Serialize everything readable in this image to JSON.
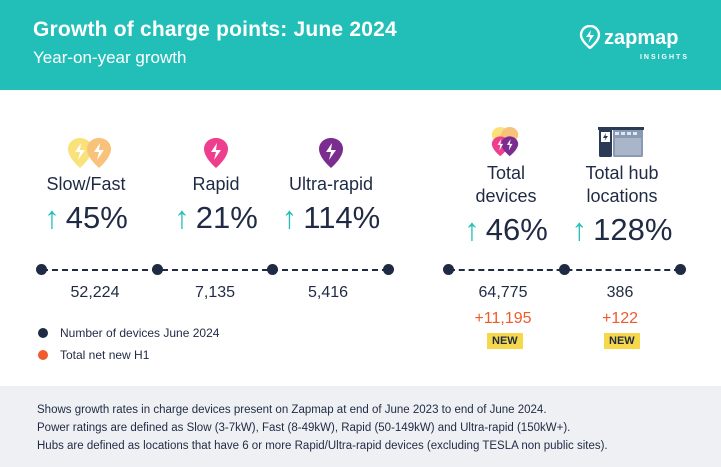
{
  "header": {
    "title": "Growth of charge points: June 2024",
    "subtitle": "Year-on-year growth",
    "brand_name": "zapmap",
    "brand_tag": "INSIGHTS"
  },
  "stats": {
    "slow_fast": {
      "label": "Slow/Fast",
      "growth": "45%",
      "icon": "bolt-pair-icon",
      "count": "52,224"
    },
    "rapid": {
      "label": "Rapid",
      "growth": "21%",
      "icon": "bolt-pink-icon",
      "count": "7,135"
    },
    "ultra_rapid": {
      "label": "Ultra-rapid",
      "growth": "114%",
      "icon": "bolt-purple-icon",
      "count": "5,416"
    },
    "total_devices": {
      "label_line1": "Total",
      "label_line2": "devices",
      "growth": "46%",
      "icon": "bolt-stack-icon",
      "count": "64,775",
      "net_new": "+11,195",
      "badge": "NEW"
    },
    "total_hubs": {
      "label_line1": "Total hub",
      "label_line2": "locations",
      "growth": "128%",
      "icon": "charging-hub-icon",
      "count": "386",
      "net_new": "+122",
      "badge": "NEW"
    }
  },
  "legend": {
    "devices": "Number of devices June 2024",
    "net_new": "Total net new H1"
  },
  "colors": {
    "teal": "#22bfb9",
    "navy": "#1f2a44",
    "orange": "#f15a2b",
    "yellow": "#f7d84b",
    "pink": "#ee3f8f",
    "purple": "#7a2d8f"
  },
  "footer": {
    "line1": "Shows growth rates in charge devices present on Zapmap at end of June 2023 to end of June 2024.",
    "line2": "Power ratings are defined as Slow (3-7kW), Fast (8-49kW), Rapid (50-149kW) and Ultra-rapid (150kW+).",
    "line3": "Hubs are defined as locations that have 6 or more Rapid/Ultra-rapid devices (excluding TESLA non public sites)."
  }
}
